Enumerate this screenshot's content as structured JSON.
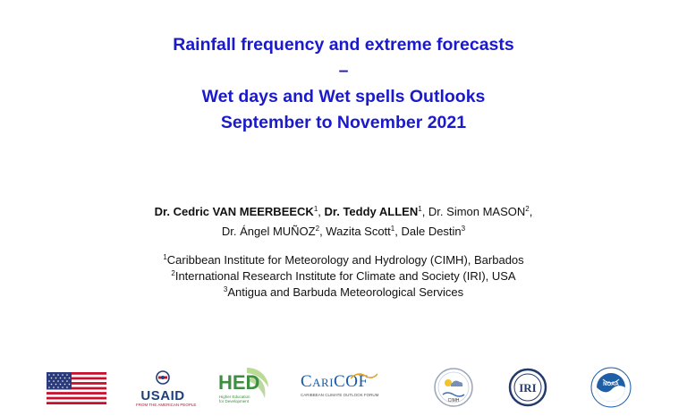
{
  "title": {
    "line1": "Rainfall frequency and extreme forecasts",
    "line2": "–",
    "line3": "Wet days and Wet spells Outlooks",
    "line4": "September to November 2021"
  },
  "authors": [
    {
      "name": "Dr. Cedric VAN MEERBEECK",
      "sup": "1",
      "sep": ", ",
      "bold": true
    },
    {
      "name": "Dr. Teddy ALLEN",
      "sup": "1",
      "sep": ", ",
      "bold": true
    },
    {
      "name": "Dr. Simon MASON",
      "sup": "2",
      "sep": ",",
      "bold": false
    },
    {
      "name": "Dr. Ángel MUÑOZ",
      "sup": "2",
      "sep": ", ",
      "bold": false
    },
    {
      "name": "Wazita Scott",
      "sup": "1",
      "sep": ", ",
      "bold": false
    },
    {
      "name": "Dale Destin",
      "sup": "3",
      "sep": "",
      "bold": false
    }
  ],
  "affiliations": [
    {
      "num": "1",
      "text": "Caribbean Institute for Meteorology and Hydrology (CIMH), Barbados"
    },
    {
      "num": "2",
      "text": "International Research Institute for Climate and Society (IRI), USA"
    },
    {
      "num": "3",
      "text": "Antigua and Barbuda Meteorological Services"
    }
  ],
  "logos": {
    "usaid": {
      "name": "USAID",
      "sub": "FROM THE AMERICAN PEOPLE"
    },
    "hed": {
      "name": "HED",
      "sub1": "Higher Education",
      "sub2": "for Development"
    },
    "caricof": {
      "name": "CariCOF",
      "sub": "CARIBBEAN CLIMATE OUTLOOK FORUM"
    },
    "cimh": {
      "name": "CIMH"
    },
    "iri": {
      "name": "IRI"
    },
    "noaa": {
      "name": "NOAA"
    }
  },
  "colors": {
    "title": "#1a1acc",
    "usaid_blue": "#1f3f7c",
    "usaid_red": "#c8102e",
    "hed_green": "#3e8e41",
    "noaa_blue": "#1f5fa8",
    "iri_navy": "#233a6a"
  }
}
